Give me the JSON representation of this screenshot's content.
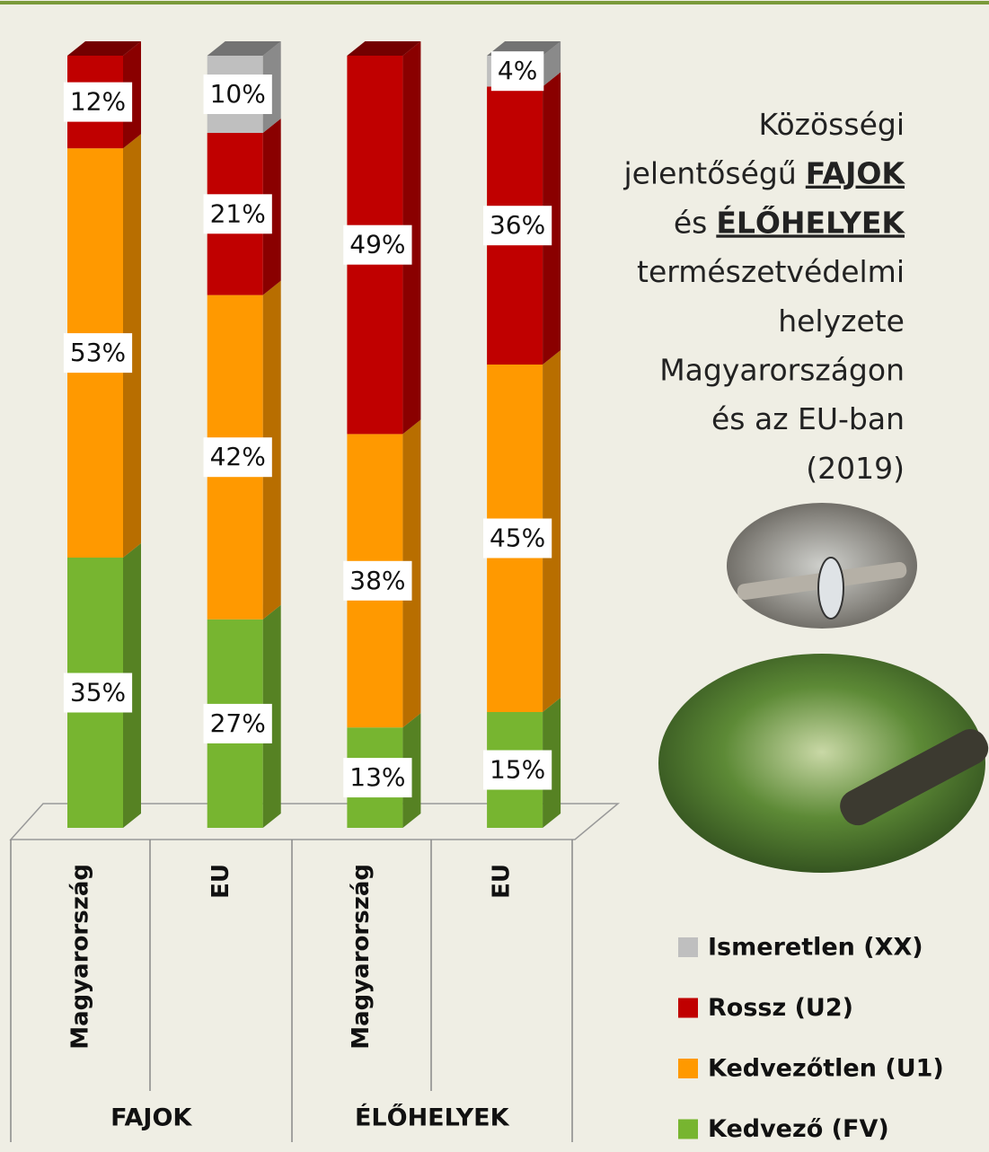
{
  "chart_data": {
    "type": "stacked-bar-3d",
    "title_lines": [
      [
        {
          "text": "Közösségi"
        }
      ],
      [
        {
          "text": "jelentőségű"
        },
        {
          "text": "FAJOK",
          "emphasis": true
        }
      ],
      [
        {
          "text": "és"
        },
        {
          "text": "ÉLŐHELYEK",
          "emphasis": true
        }
      ],
      [
        {
          "text": "természetvédelmi"
        }
      ],
      [
        {
          "text": "helyzete"
        }
      ],
      [
        {
          "text": "Magyarországon"
        }
      ],
      [
        {
          "text": "és az EU-ban"
        }
      ],
      [
        {
          "text": "(2019)"
        }
      ]
    ],
    "categories": [
      "Magyarország",
      "EU",
      "Magyarország",
      "EU"
    ],
    "groups": [
      "FAJOK",
      "ÉLŐHELYEK"
    ],
    "series": [
      {
        "name": "Kedvező (FV)",
        "color": "#77b530",
        "values": [
          35,
          27,
          13,
          15
        ],
        "value_labels": [
          "35%",
          "27%",
          "13%",
          "15%"
        ]
      },
      {
        "name": "Kedvezőtlen (U1)",
        "color": "#ff9900",
        "values": [
          53,
          42,
          38,
          45
        ],
        "value_labels": [
          "53%",
          "42%",
          "38%",
          "45%"
        ]
      },
      {
        "name": "Rossz (U2)",
        "color": "#c00000",
        "values": [
          12,
          21,
          49,
          36
        ],
        "value_labels": [
          "12%",
          "21%",
          "49%",
          "36%"
        ]
      },
      {
        "name": "Ismeretlen (XX)",
        "color": "#bfbfbf",
        "values": [
          null,
          10,
          null,
          4
        ],
        "value_labels": [
          null,
          "10%",
          null,
          "4%"
        ]
      }
    ]
  }
}
